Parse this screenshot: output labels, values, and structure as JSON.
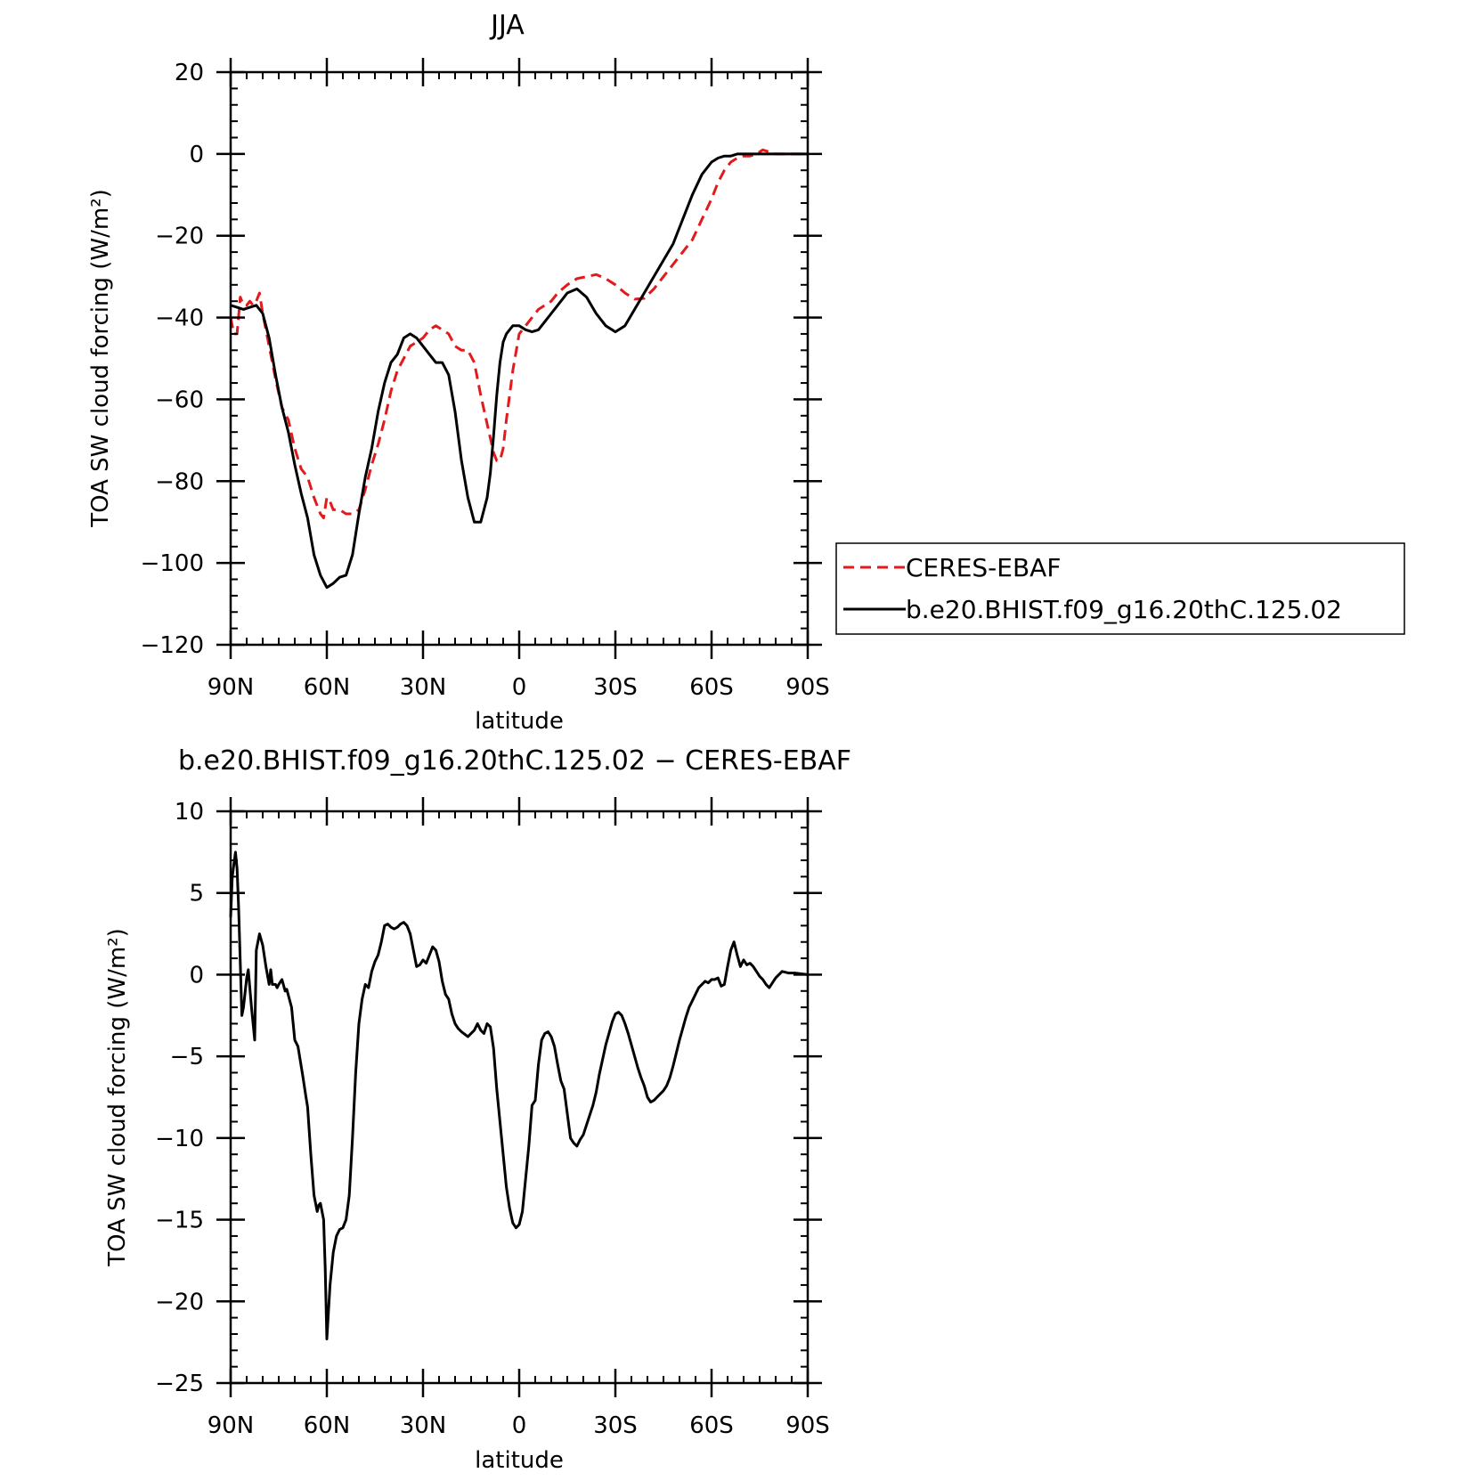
{
  "chart_data": [
    {
      "type": "line",
      "title": "JJA",
      "xlabel": "latitude",
      "ylabel": "TOA SW cloud forcing (W/m²)",
      "xlim": [
        90,
        -90
      ],
      "ylim": [
        -120,
        20
      ],
      "x_ticks": [
        90,
        60,
        30,
        0,
        -30,
        -60,
        -90
      ],
      "x_tick_labels": [
        "90N",
        "60N",
        "30N",
        "0",
        "30S",
        "60S",
        "90S"
      ],
      "y_ticks": [
        20,
        0,
        -20,
        -40,
        -60,
        -80,
        -100,
        -120
      ],
      "y_tick_labels": [
        "20",
        "0",
        "−20",
        "−40",
        "−60",
        "−80",
        "−100",
        "−120"
      ],
      "legend_position": "right",
      "series": [
        {
          "name": "CERES-EBAF",
          "color": "#e31a1c",
          "dash": "dashed",
          "x": [
            90,
            89,
            88,
            87,
            86,
            85,
            84,
            83,
            82,
            81,
            80,
            78,
            76,
            74,
            72,
            70,
            68,
            66,
            64,
            62,
            61,
            60,
            59,
            58,
            56,
            54,
            52,
            50,
            48,
            46,
            44,
            42,
            40,
            38,
            36,
            34,
            32,
            30,
            28,
            26,
            24,
            22,
            20,
            18,
            16,
            14,
            12,
            10,
            8,
            7,
            6,
            5,
            4,
            2,
            0,
            -2,
            -4,
            -6,
            -8,
            -10,
            -12,
            -15,
            -18,
            -21,
            -24,
            -27,
            -30,
            -33,
            -36,
            -39,
            -42,
            -45,
            -48,
            -51,
            -54,
            -57,
            -60,
            -62,
            -64,
            -66,
            -68,
            -70,
            -72,
            -74,
            -76,
            -78,
            -80,
            -85,
            -90
          ],
          "y": [
            -40,
            -44,
            -44,
            -35,
            -37,
            -37,
            -36,
            -37,
            -36,
            -34,
            -39,
            -47,
            -55,
            -62,
            -65,
            -72,
            -77,
            -79,
            -84,
            -88,
            -89,
            -84,
            -85,
            -87,
            -87,
            -88,
            -88,
            -87,
            -82,
            -76,
            -71,
            -65,
            -58,
            -53,
            -50,
            -47,
            -46,
            -45,
            -43,
            -42,
            -43,
            -44,
            -47,
            -48,
            -48,
            -51,
            -59,
            -66,
            -73,
            -75,
            -75,
            -72,
            -65,
            -53,
            -44,
            -42,
            -40,
            -38,
            -37,
            -36,
            -34,
            -32,
            -30.5,
            -30,
            -29.5,
            -30.5,
            -32,
            -34,
            -35.5,
            -35.3,
            -33,
            -30,
            -27,
            -24,
            -21,
            -16,
            -11,
            -7,
            -4,
            -2,
            -1,
            -0.5,
            -0.5,
            0,
            1,
            0.5,
            0,
            0,
            0
          ]
        },
        {
          "name": "b.e20.BHIST.f09_g16.20thC.125.02",
          "color": "#000000",
          "dash": "solid",
          "x": [
            90,
            88,
            86,
            84,
            82,
            80,
            78,
            76,
            74,
            72,
            70,
            68,
            66,
            64,
            62,
            60,
            58,
            56,
            54,
            52,
            50,
            48,
            46,
            44,
            42,
            40,
            38,
            36,
            34,
            32,
            30,
            28,
            26,
            24,
            22,
            20,
            18,
            16,
            14,
            12,
            10,
            9,
            8,
            7,
            6,
            5,
            4,
            2,
            0,
            -2,
            -4,
            -6,
            -8,
            -10,
            -12,
            -15,
            -18,
            -21,
            -24,
            -27,
            -30,
            -33,
            -36,
            -39,
            -42,
            -45,
            -48,
            -51,
            -54,
            -57,
            -60,
            -62,
            -64,
            -66,
            -68,
            -70,
            -72,
            -74,
            -76,
            -78,
            -80,
            -85,
            -90
          ],
          "y": [
            -37,
            -37.5,
            -38,
            -37.5,
            -37,
            -39,
            -45,
            -54,
            -62,
            -68,
            -76,
            -83,
            -89,
            -98,
            -103,
            -106,
            -105,
            -103.5,
            -103,
            -98,
            -88,
            -79,
            -72,
            -63,
            -56,
            -51,
            -49,
            -45,
            -44,
            -45,
            -47,
            -49,
            -51,
            -51,
            -54,
            -63,
            -75,
            -84,
            -90,
            -90,
            -84,
            -78,
            -69,
            -59,
            -51,
            -46,
            -44,
            -42,
            -42,
            -43,
            -43.5,
            -43,
            -41,
            -39,
            -37,
            -34,
            -33,
            -35,
            -39,
            -42,
            -43.5,
            -42,
            -38,
            -34,
            -30,
            -26,
            -22,
            -16,
            -10,
            -5,
            -2,
            -1,
            -0.5,
            -0.5,
            0,
            0,
            0,
            0,
            0,
            0,
            0,
            0,
            0
          ]
        }
      ]
    },
    {
      "type": "line",
      "title": "b.e20.BHIST.f09_g16.20thC.125.02 − CERES-EBAF",
      "xlabel": "latitude",
      "ylabel": "TOA SW cloud forcing (W/m²)",
      "xlim": [
        90,
        -90
      ],
      "ylim": [
        -25,
        10
      ],
      "x_ticks": [
        90,
        60,
        30,
        0,
        -30,
        -60,
        -90
      ],
      "x_tick_labels": [
        "90N",
        "60N",
        "30N",
        "0",
        "30S",
        "60S",
        "90S"
      ],
      "y_ticks": [
        10,
        5,
        0,
        -5,
        -10,
        -15,
        -20,
        -25
      ],
      "y_tick_labels": [
        "10",
        "5",
        "0",
        "−5",
        "−10",
        "−15",
        "−20",
        "−25"
      ],
      "series": [
        {
          "color": "#000000",
          "dash": "solid",
          "x": [
            90,
            89.5,
            88.5,
            88,
            87.5,
            86.5,
            86,
            85,
            84.5,
            83.5,
            82.5,
            82,
            81,
            80,
            79,
            78,
            77.5,
            77,
            76,
            75.5,
            75,
            74,
            73,
            72.5,
            71,
            70,
            69,
            67.5,
            66.5,
            66,
            65,
            64,
            63,
            62.5,
            62,
            61,
            60.5,
            60,
            59,
            58,
            57,
            56,
            55,
            54,
            53,
            52,
            51,
            50,
            49,
            48,
            47,
            46,
            45,
            44,
            43,
            42,
            41,
            40,
            39,
            38,
            37,
            36,
            35,
            34,
            33,
            32,
            31,
            30,
            29,
            28,
            27,
            26,
            25,
            24,
            23,
            22,
            21,
            20,
            19,
            18,
            16,
            14,
            13,
            12,
            11,
            10,
            9,
            8,
            7,
            6,
            5,
            4,
            3,
            2,
            1,
            0,
            -1,
            -2,
            -3,
            -4,
            -5,
            -6,
            -7,
            -8,
            -9,
            -10,
            -11,
            -12,
            -13,
            -14,
            -15,
            -16,
            -17,
            -18,
            -19,
            -20,
            -21,
            -22,
            -23,
            -24,
            -25,
            -26,
            -27,
            -28,
            -29,
            -30,
            -31,
            -32,
            -33,
            -34,
            -35,
            -36,
            -37,
            -38,
            -39,
            -40,
            -41,
            -42,
            -43,
            -44,
            -45,
            -46,
            -47,
            -48,
            -49,
            -50,
            -51,
            -52,
            -53,
            -54,
            -55,
            -56,
            -57,
            -58,
            -59,
            -60,
            -61,
            -62,
            -63,
            -64,
            -65,
            -66,
            -67,
            -68,
            -69,
            -70,
            -71,
            -72,
            -73,
            -74,
            -75,
            -76,
            -77,
            -78,
            -79,
            -80,
            -82,
            -84,
            -86,
            -88,
            -90
          ],
          "y": [
            3.5,
            6,
            7.5,
            6.5,
            4,
            -2.5,
            -2,
            -0.2,
            0.3,
            -2,
            -4,
            1.5,
            2.5,
            1.8,
            0.5,
            -0.6,
            0.3,
            -0.6,
            -0.6,
            -0.8,
            -0.6,
            -0.3,
            -1,
            -0.9,
            -2,
            -4,
            -4.4,
            -6.2,
            -7.5,
            -8.1,
            -11,
            -13.5,
            -14.5,
            -14.1,
            -14,
            -15,
            -18,
            -22.3,
            -19,
            -17,
            -16,
            -15.6,
            -15.5,
            -15,
            -13.5,
            -10,
            -6,
            -3,
            -1.5,
            -0.6,
            -0.8,
            0.2,
            0.8,
            1.2,
            2,
            3,
            3.1,
            2.9,
            2.8,
            2.9,
            3.1,
            3.2,
            3,
            2.5,
            1.5,
            0.5,
            0.6,
            0.9,
            0.7,
            1.2,
            1.7,
            1.5,
            0.8,
            -0.4,
            -1.2,
            -1.5,
            -2.4,
            -3,
            -3.3,
            -3.5,
            -3.8,
            -3.4,
            -3,
            -3.4,
            -3.6,
            -3,
            -3.2,
            -4.5,
            -7,
            -9,
            -11,
            -13,
            -14.3,
            -15.2,
            -15.5,
            -15.3,
            -14.5,
            -12.5,
            -10.5,
            -8,
            -7.7,
            -5.5,
            -4,
            -3.6,
            -3.5,
            -3.8,
            -4.4,
            -5.5,
            -6.5,
            -7,
            -8.5,
            -10,
            -10.3,
            -10.5,
            -10.1,
            -9.8,
            -9.2,
            -8.6,
            -8,
            -7.2,
            -6.1,
            -5.2,
            -4.3,
            -3.6,
            -2.9,
            -2.4,
            -2.3,
            -2.5,
            -3,
            -3.6,
            -4.3,
            -5,
            -5.7,
            -6.3,
            -6.8,
            -7.5,
            -7.8,
            -7.7,
            -7.5,
            -7.3,
            -7.1,
            -6.8,
            -6.3,
            -5.6,
            -4.8,
            -4,
            -3.3,
            -2.6,
            -2,
            -1.6,
            -1.2,
            -0.8,
            -0.6,
            -0.4,
            -0.5,
            -0.3,
            -0.3,
            -0.2,
            -0.7,
            -0.6,
            0.5,
            1.5,
            2,
            1.2,
            0.5,
            0.9,
            0.6,
            0.7,
            0.5,
            0.2,
            -0.1,
            -0.3,
            -0.6,
            -0.8,
            -0.5,
            -0.2,
            0.2,
            0.1,
            0.1,
            0.05,
            0
          ]
        }
      ]
    }
  ]
}
